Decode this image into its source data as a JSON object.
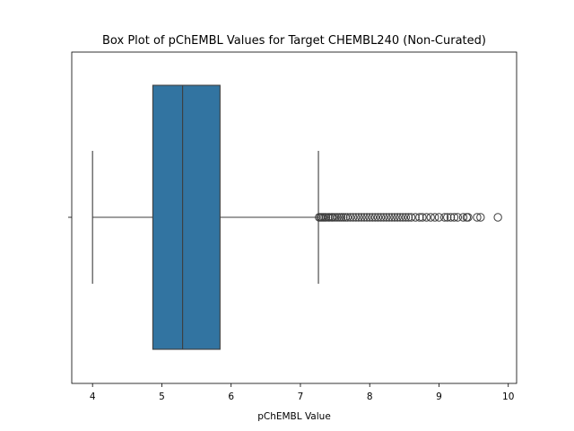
{
  "chart_data": {
    "type": "box",
    "title": "Box Plot of pChEMBL Values for Target CHEMBL240 (Non-Curated)",
    "xlabel": "pChEMBL Value",
    "ylabel": "",
    "xlim": [
      3.7,
      10.12
    ],
    "xticks": [
      4,
      5,
      6,
      7,
      8,
      9,
      10
    ],
    "orientation": "horizontal",
    "grid": false,
    "colors": {
      "box_fill": "#3274a1",
      "lines": "#3d3d3d"
    },
    "box": {
      "whisker_low": 4.0,
      "q1": 4.87,
      "median": 5.3,
      "q3": 5.84,
      "whisker_high": 7.26
    },
    "outliers": [
      7.27,
      7.29,
      7.31,
      7.33,
      7.35,
      7.37,
      7.4,
      7.42,
      7.45,
      7.47,
      7.5,
      7.53,
      7.56,
      7.59,
      7.62,
      7.65,
      7.68,
      7.72,
      7.76,
      7.8,
      7.84,
      7.88,
      7.92,
      7.96,
      8.0,
      8.04,
      8.08,
      8.12,
      8.16,
      8.2,
      8.24,
      8.28,
      8.32,
      8.36,
      8.4,
      8.44,
      8.48,
      8.52,
      8.56,
      8.6,
      8.66,
      8.72,
      8.76,
      8.82,
      8.88,
      8.94,
      9.0,
      9.08,
      9.12,
      9.17,
      9.22,
      9.27,
      9.35,
      9.4,
      9.42,
      9.55,
      9.6,
      9.85
    ]
  }
}
